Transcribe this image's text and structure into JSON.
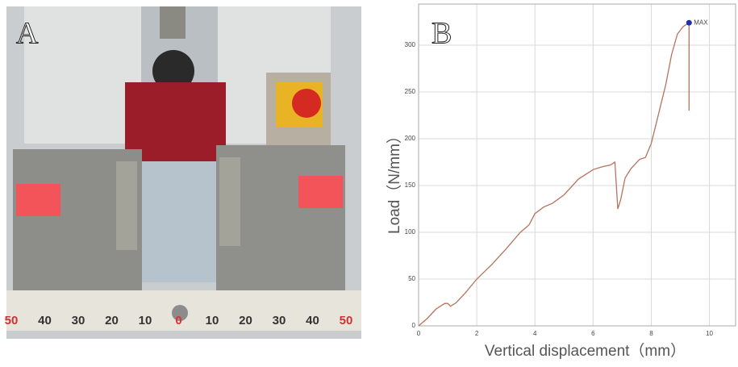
{
  "photo": {
    "label": "A",
    "ruler_labels": [
      "50",
      "40",
      "30",
      "20",
      "10",
      "0",
      "10",
      "20",
      "30",
      "40",
      "50"
    ]
  },
  "chart_data": {
    "type": "line",
    "panel_label": "B",
    "x_label": "Vertical displacement（mm）",
    "y_label": "Load（N/mm）",
    "x": [
      0,
      0.3,
      0.6,
      0.9,
      1.0,
      1.1,
      1.3,
      1.6,
      2.0,
      2.5,
      3.0,
      3.5,
      3.8,
      4.0,
      4.3,
      4.6,
      5.0,
      5.5,
      6.0,
      6.3,
      6.6,
      6.75,
      6.8,
      6.85,
      6.95,
      7.1,
      7.3,
      7.6,
      7.8,
      8.0,
      8.2,
      8.5,
      8.7,
      8.9,
      9.1,
      9.3,
      9.3
    ],
    "y": [
      0,
      8,
      18,
      24,
      24,
      21,
      25,
      35,
      50,
      65,
      82,
      100,
      108,
      120,
      127,
      131,
      140,
      157,
      167,
      170,
      172,
      175,
      150,
      125,
      135,
      158,
      168,
      178,
      180,
      195,
      220,
      258,
      290,
      312,
      320,
      324,
      230
    ],
    "color": "#b5735e",
    "max": {
      "x": 9.3,
      "y": 324,
      "label": "MAX",
      "color": "#1f2fb0"
    },
    "xlim": [
      0,
      10.9
    ],
    "ylim": [
      0,
      344
    ],
    "xticks": [
      0,
      2,
      4,
      6,
      8,
      10
    ],
    "yticks": [
      0,
      50,
      100,
      150,
      200,
      250,
      300
    ],
    "grid": true
  }
}
